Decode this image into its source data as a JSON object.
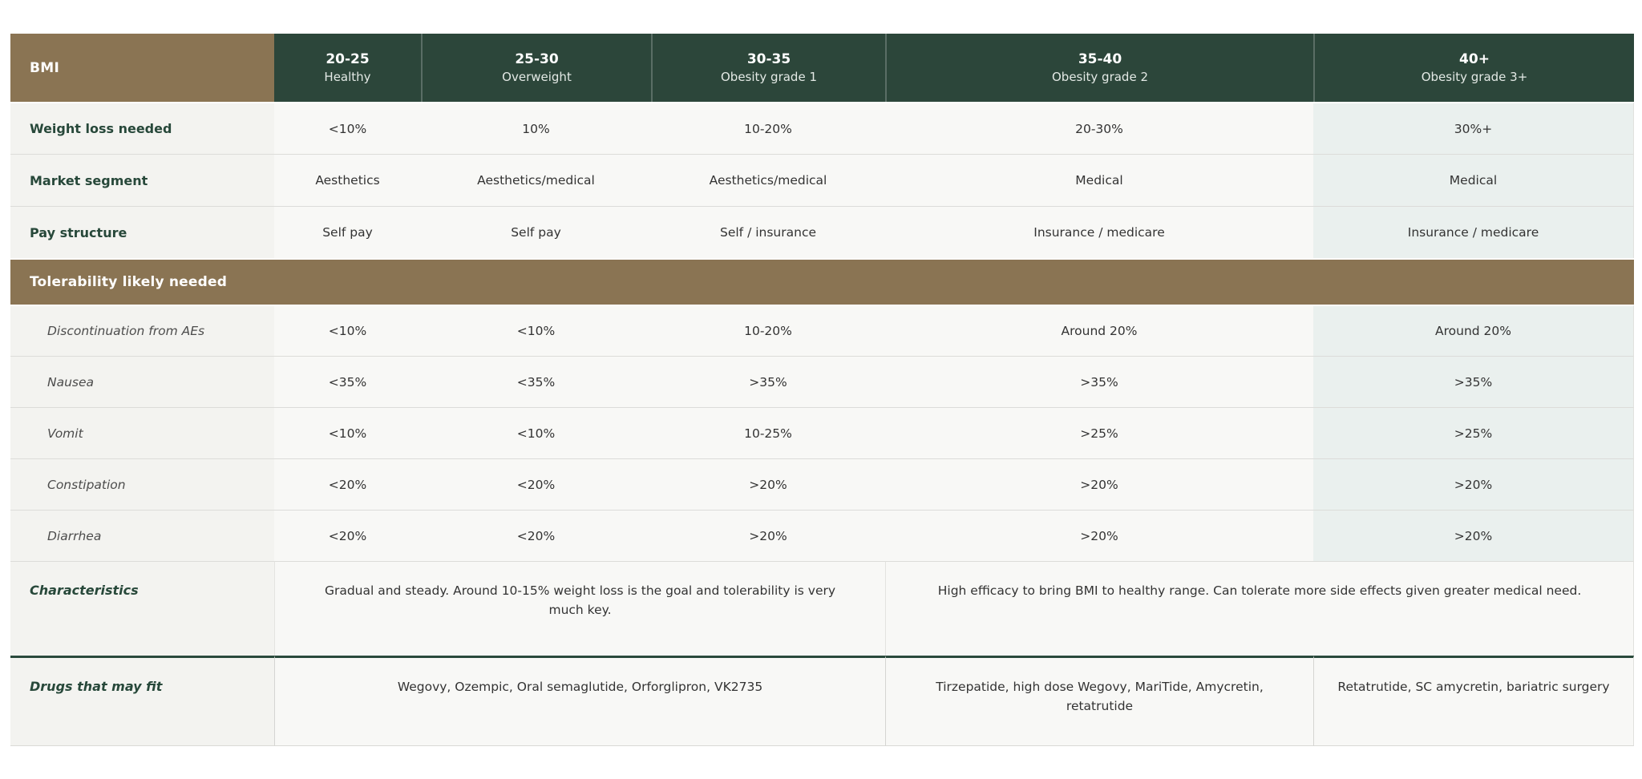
{
  "table": {
    "corner_label": "BMI",
    "columns": [
      {
        "range": "20-25",
        "label": "Healthy"
      },
      {
        "range": "25-30",
        "label": "Overweight"
      },
      {
        "range": "30-35",
        "label": "Obesity grade 1"
      },
      {
        "range": "35-40",
        "label": "Obesity grade 2"
      },
      {
        "range": "40+",
        "label": "Obesity grade 3+"
      }
    ],
    "rows": [
      {
        "label": "Weight loss needed",
        "values": [
          "<10%",
          "10%",
          "10-20%",
          "20-30%",
          "30%+"
        ]
      },
      {
        "label": "Market segment",
        "values": [
          "Aesthetics",
          "Aesthetics/medical",
          "Aesthetics/medical",
          "Medical",
          "Medical"
        ]
      },
      {
        "label": "Pay structure",
        "values": [
          "Self pay",
          "Self pay",
          "Self / insurance",
          "Insurance / medicare",
          "Insurance / medicare"
        ]
      }
    ],
    "tolerability": {
      "header": "Tolerability likely needed",
      "rows": [
        {
          "label": "Discontinuation from AEs",
          "values": [
            "<10%",
            "<10%",
            "10-20%",
            "Around 20%",
            "Around 20%"
          ]
        },
        {
          "label": "Nausea",
          "values": [
            "<35%",
            "<35%",
            ">35%",
            ">35%",
            ">35%"
          ]
        },
        {
          "label": "Vomit",
          "values": [
            "<10%",
            "<10%",
            "10-25%",
            ">25%",
            ">25%"
          ]
        },
        {
          "label": "Constipation",
          "values": [
            "<20%",
            "<20%",
            ">20%",
            ">20%",
            ">20%"
          ]
        },
        {
          "label": "Diarrhea",
          "values": [
            "<20%",
            "<20%",
            ">20%",
            ">20%",
            ">20%"
          ]
        }
      ]
    },
    "characteristics": {
      "label": "Characteristics",
      "low_bmi": "Gradual and steady. Around 10-15% weight loss is the goal and tolerability is very much key.",
      "high_bmi": "High efficacy to bring BMI to healthy range. Can tolerate more side effects given greater medical need."
    },
    "drugs": {
      "label": "Drugs that may fit",
      "low_bmi": "Wegovy, Ozempic, Oral semaglutide, Orforglipron, VK2735",
      "mid_bmi": "Tirzepatide, high dose Wegovy, MariTide, Amycretin, retatrutide",
      "high_bmi": "Retatrutide, SC amycretin, bariatric surgery"
    },
    "colors": {
      "header_green": "#2c463a",
      "accent_brown": "#8a7453",
      "label_green": "#27483a",
      "last_column_tint": "#eaf0ee"
    }
  }
}
